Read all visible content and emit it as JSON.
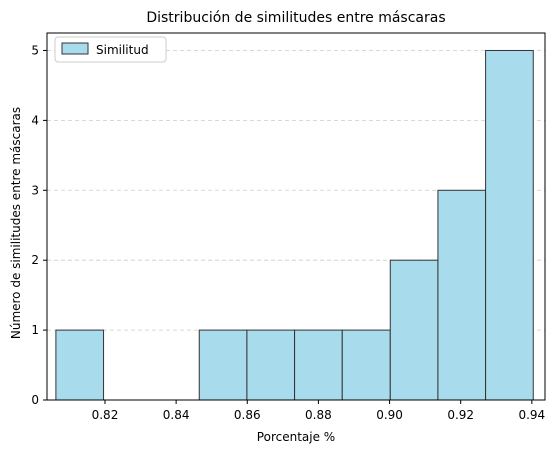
{
  "chart_data": {
    "type": "bar",
    "subtype": "histogram",
    "title": "Distribución de similitudes entre máscaras",
    "xlabel": "Porcentaje %",
    "ylabel": "Número de similitudes entre máscaras",
    "xlim": [
      0.8037,
      0.9437
    ],
    "ylim": [
      0,
      5.25
    ],
    "x_ticks": [
      0.82,
      0.84,
      0.86,
      0.88,
      0.9,
      0.92,
      0.94
    ],
    "x_tick_labels": [
      "0.82",
      "0.84",
      "0.86",
      "0.88",
      "0.90",
      "0.92",
      "0.94"
    ],
    "y_ticks": [
      0,
      1,
      2,
      3,
      4,
      5
    ],
    "y_tick_labels": [
      "0",
      "1",
      "2",
      "3",
      "4",
      "5"
    ],
    "bins": [
      {
        "start": 0.8062,
        "end": 0.8196,
        "count": 1
      },
      {
        "start": 0.8196,
        "end": 0.833,
        "count": 0
      },
      {
        "start": 0.833,
        "end": 0.8465,
        "count": 0
      },
      {
        "start": 0.8465,
        "end": 0.8599,
        "count": 1
      },
      {
        "start": 0.8599,
        "end": 0.8733,
        "count": 1
      },
      {
        "start": 0.8733,
        "end": 0.8867,
        "count": 1
      },
      {
        "start": 0.8867,
        "end": 0.9002,
        "count": 1
      },
      {
        "start": 0.9002,
        "end": 0.9136,
        "count": 2
      },
      {
        "start": 0.9136,
        "end": 0.927,
        "count": 3
      },
      {
        "start": 0.927,
        "end": 0.9404,
        "count": 5
      }
    ],
    "series": [
      {
        "name": "Similitud",
        "color": "#a8dced",
        "edge_color": "#333333"
      }
    ],
    "grid": {
      "axis": "y",
      "style": "dashed",
      "color": "#cccccc"
    },
    "legend": {
      "placement": "top-left",
      "entries": [
        "Similitud"
      ]
    }
  }
}
